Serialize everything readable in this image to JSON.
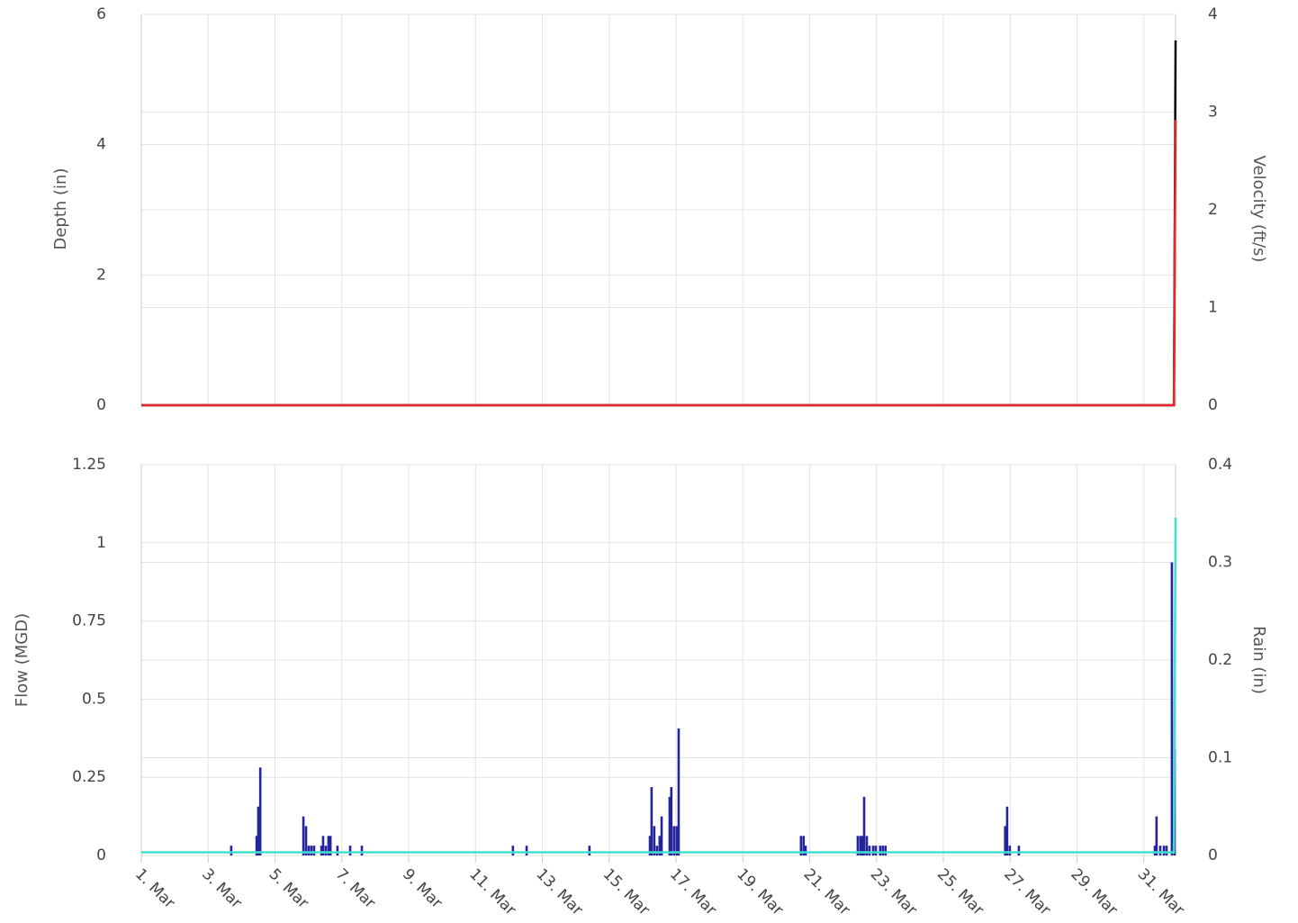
{
  "chart_data": [
    {
      "type": "line",
      "y_label": "Depth (in)",
      "y2_label": "Velocity (ft/s)",
      "xlim": [
        1,
        31.95
      ],
      "ylim": [
        0,
        6
      ],
      "yticks": [
        0,
        2,
        4,
        6
      ],
      "y2lim": [
        0,
        4
      ],
      "y2ticks": [
        0,
        1,
        2,
        3,
        4
      ],
      "grid": true,
      "series": [
        {
          "type": "line",
          "color": "#000000",
          "x": [
            1,
            31.9,
            31.95
          ],
          "values": [
            0,
            0,
            5.6
          ]
        },
        {
          "type": "line",
          "color": "#e8262a",
          "axis": "y2",
          "x": [
            1,
            31.9,
            31.95
          ],
          "values": [
            0,
            0,
            2.92
          ]
        }
      ]
    },
    {
      "type": "bar",
      "y_label": "Flow (MGD)",
      "y2_label": "Rain (in)",
      "xlim": [
        1,
        31.95
      ],
      "xticks": [
        {
          "value": 1,
          "label": "1. Mar"
        },
        {
          "value": 3,
          "label": "3. Mar"
        },
        {
          "value": 5,
          "label": "5. Mar"
        },
        {
          "value": 7,
          "label": "7. Mar"
        },
        {
          "value": 9,
          "label": "9. Mar"
        },
        {
          "value": 11,
          "label": "11. Mar"
        },
        {
          "value": 13,
          "label": "13. Mar"
        },
        {
          "value": 15,
          "label": "15. Mar"
        },
        {
          "value": 17,
          "label": "17. Mar"
        },
        {
          "value": 19,
          "label": "19. Mar"
        },
        {
          "value": 21,
          "label": "21. Mar"
        },
        {
          "value": 23,
          "label": "23. Mar"
        },
        {
          "value": 25,
          "label": "25. Mar"
        },
        {
          "value": 27,
          "label": "27. Mar"
        },
        {
          "value": 29,
          "label": "29. Mar"
        },
        {
          "value": 31,
          "label": "31. Mar"
        }
      ],
      "ylim": [
        0,
        1.25
      ],
      "yticks": [
        0,
        0.25,
        0.5,
        0.75,
        1,
        1.25
      ],
      "y2lim": [
        0,
        0.4
      ],
      "y2ticks": [
        0,
        0.1,
        0.2,
        0.3,
        0.4
      ],
      "grid": true,
      "series": [
        {
          "type": "line",
          "color": "#40e0d0",
          "x": [
            1,
            31.9,
            31.95
          ],
          "values": [
            0.01,
            0.01,
            1.08
          ]
        },
        {
          "type": "bar",
          "color": "#24249c",
          "axis": "y2",
          "x": [
            3.69,
            4.45,
            4.5,
            4.56,
            5.85,
            5.93,
            6.01,
            6.09,
            6.17,
            6.39,
            6.44,
            6.52,
            6.6,
            6.66,
            6.87,
            7.25,
            7.6,
            12.12,
            12.53,
            14.41,
            16.22,
            16.27,
            16.35,
            16.43,
            16.51,
            16.57,
            16.81,
            16.86,
            16.94,
            17.02,
            17.08,
            20.74,
            20.82,
            20.88,
            22.44,
            22.52,
            22.57,
            22.63,
            22.71,
            22.79,
            22.9,
            22.98,
            23.11,
            23.19,
            23.27,
            26.85,
            26.91,
            26.99,
            27.26,
            31.33,
            31.38,
            31.49,
            31.6,
            31.68,
            31.84,
            31.92
          ],
          "values": [
            0.01,
            0.02,
            0.05,
            0.09,
            0.04,
            0.03,
            0.01,
            0.01,
            0.01,
            0.01,
            0.02,
            0.01,
            0.02,
            0.02,
            0.01,
            0.01,
            0.01,
            0.01,
            0.01,
            0.01,
            0.02,
            0.07,
            0.03,
            0.01,
            0.02,
            0.04,
            0.06,
            0.07,
            0.03,
            0.03,
            0.13,
            0.02,
            0.02,
            0.01,
            0.02,
            0.02,
            0.02,
            0.06,
            0.02,
            0.01,
            0.01,
            0.01,
            0.01,
            0.01,
            0.01,
            0.03,
            0.05,
            0.01,
            0.01,
            0.01,
            0.04,
            0.01,
            0.01,
            0.01,
            0.3,
            0.11
          ]
        }
      ]
    }
  ]
}
